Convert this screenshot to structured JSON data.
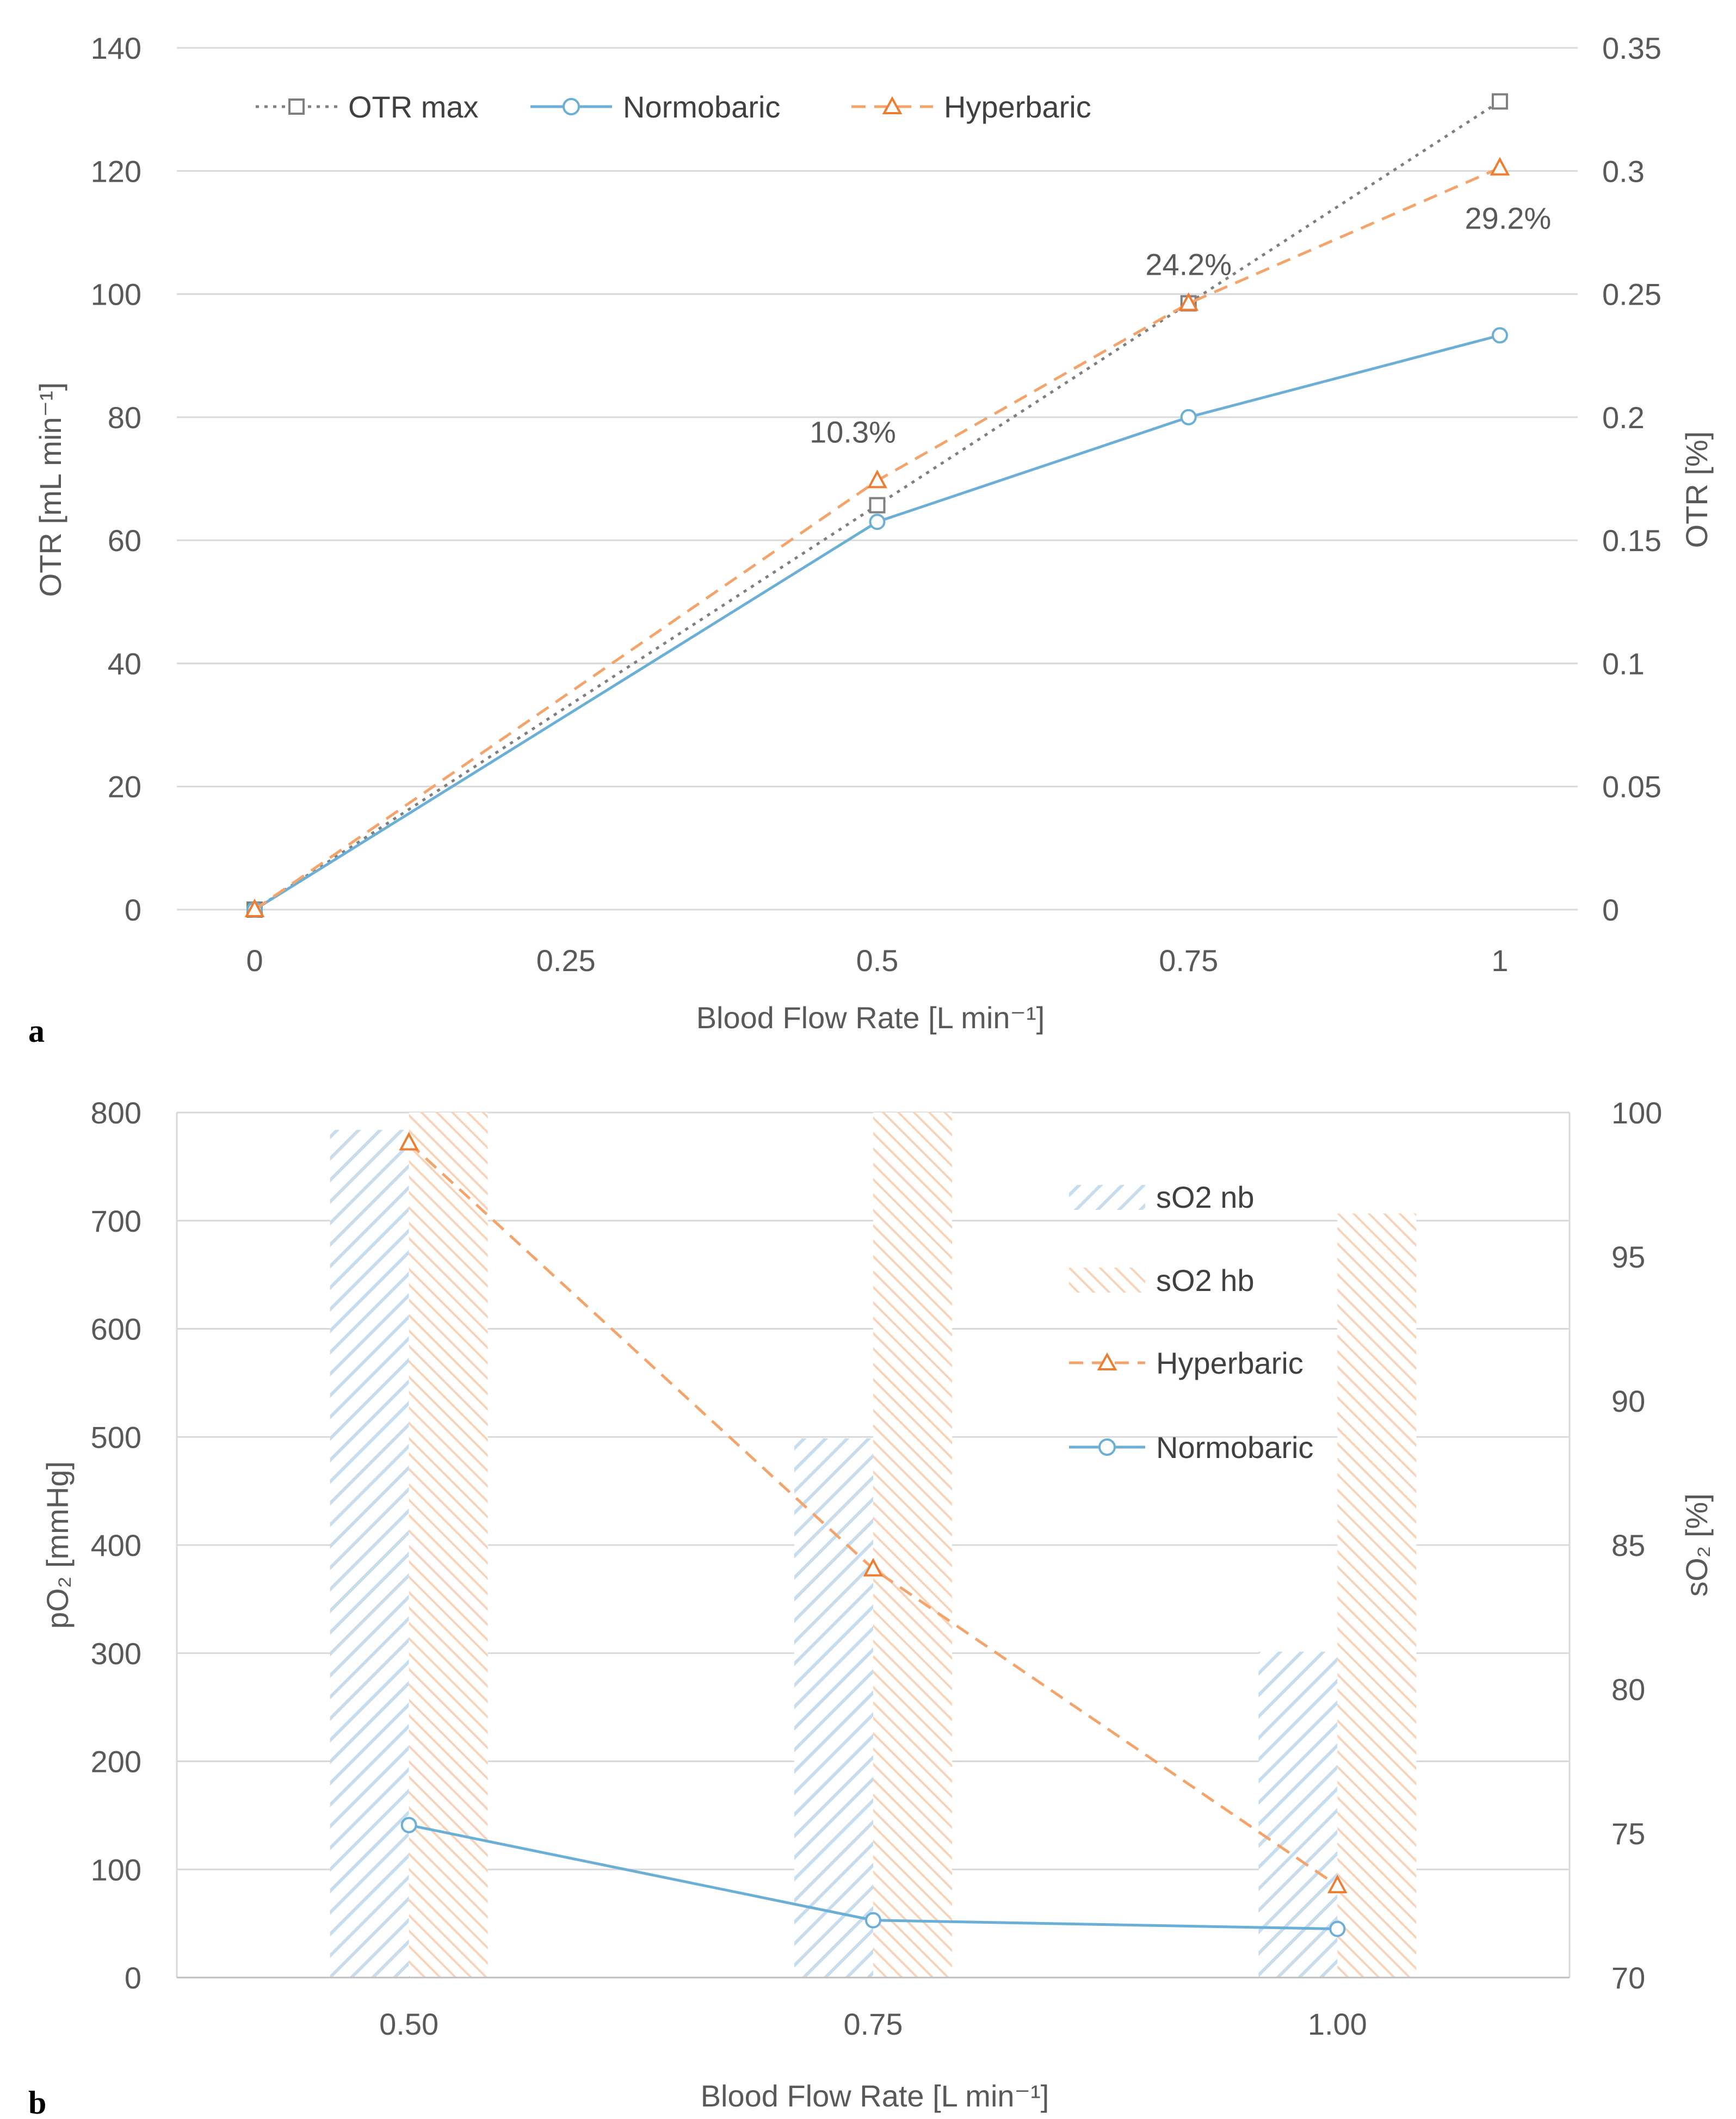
{
  "colors": {
    "normobaric": "#6BAED6",
    "hyperbaric": "#F4A46A",
    "hyper_marker": "#ED7D31",
    "otr_max": "#7F7F7F",
    "grid": "#D9D9D9",
    "text": "#595959"
  },
  "chart_data": [
    {
      "panel": "a",
      "type": "line",
      "x": [
        0,
        0.5,
        0.75,
        1
      ],
      "x_ticks": [
        "0",
        "0.25",
        "0.5",
        "0.75",
        "1"
      ],
      "x_tick_values": [
        0,
        0.25,
        0.5,
        0.75,
        1
      ],
      "xlim": [
        -0.0625,
        1.0625
      ],
      "xlabel": "Blood Flow Rate [L min⁻¹]",
      "ylabel": "OTR [mL min⁻¹]",
      "ylim": [
        0,
        140
      ],
      "y_ticks": [
        "0",
        "20",
        "40",
        "60",
        "80",
        "100",
        "120",
        "140"
      ],
      "y_tick_values": [
        0,
        20,
        40,
        60,
        80,
        100,
        120,
        140
      ],
      "y2label": "OTR [%]",
      "y2lim": [
        0,
        0.35
      ],
      "y2_ticks": [
        "0",
        "0.05",
        "0.1",
        "0.15",
        "0.2",
        "0.25",
        "0.3",
        "0.35"
      ],
      "grid": true,
      "legend_position": "top-left",
      "series": [
        {
          "name": "OTR max",
          "key": "otr_max",
          "style": "dotted",
          "marker": "square",
          "values": [
            0,
            65.7,
            98.5,
            131.3
          ]
        },
        {
          "name": "Normobaric",
          "key": "normobaric",
          "style": "solid",
          "marker": "circle",
          "values": [
            0,
            63,
            80,
            93.3
          ]
        },
        {
          "name": "Hyperbaric",
          "key": "hyperbaric",
          "style": "dashed",
          "marker": "triangle",
          "values": [
            0,
            69.7,
            98.5,
            120.5
          ]
        }
      ],
      "annotations": [
        {
          "text": "10.3%",
          "x": 0.5,
          "y": 69.7
        },
        {
          "text": "24.2%",
          "x": 0.75,
          "y": 98.5
        },
        {
          "text": "29.2%",
          "x": 1,
          "y": 120.5
        }
      ]
    },
    {
      "panel": "b",
      "type": "bar",
      "categories": [
        "0.50",
        "0.75",
        "1.00"
      ],
      "xlabel": "Blood Flow Rate [L min⁻¹]",
      "ylabel": "pO₂ [mmHg]",
      "ylim": [
        0,
        800
      ],
      "y_ticks": [
        "0",
        "100",
        "200",
        "300",
        "400",
        "500",
        "600",
        "700",
        "800"
      ],
      "y_tick_values": [
        0,
        100,
        200,
        300,
        400,
        500,
        600,
        700,
        800
      ],
      "y2label": "sO₂ [%]",
      "y2lim": [
        70,
        100
      ],
      "y2_ticks": [
        "70",
        "75",
        "80",
        "85",
        "90",
        "95",
        "100"
      ],
      "y2_tick_values": [
        70,
        75,
        80,
        85,
        90,
        95,
        100
      ],
      "grid": true,
      "legend_position": "top-right",
      "bar_series": [
        {
          "name": "sO2 nb",
          "key": "normobaric",
          "axis": "y2",
          "values": [
            99.4,
            88.7,
            81.3
          ]
        },
        {
          "name": "sO2 hb",
          "key": "hyperbaric",
          "axis": "y2",
          "values": [
            100,
            100,
            96.5
          ]
        }
      ],
      "line_series": [
        {
          "name": "Hyperbaric",
          "key": "hyperbaric",
          "style": "dashed",
          "marker": "triangle",
          "axis": "y",
          "values": [
            772,
            378,
            85
          ]
        },
        {
          "name": "Normobaric",
          "key": "normobaric",
          "style": "solid",
          "marker": "circle",
          "axis": "y",
          "values": [
            141,
            53,
            45
          ]
        }
      ]
    }
  ],
  "panel_labels": [
    "a",
    "b"
  ]
}
